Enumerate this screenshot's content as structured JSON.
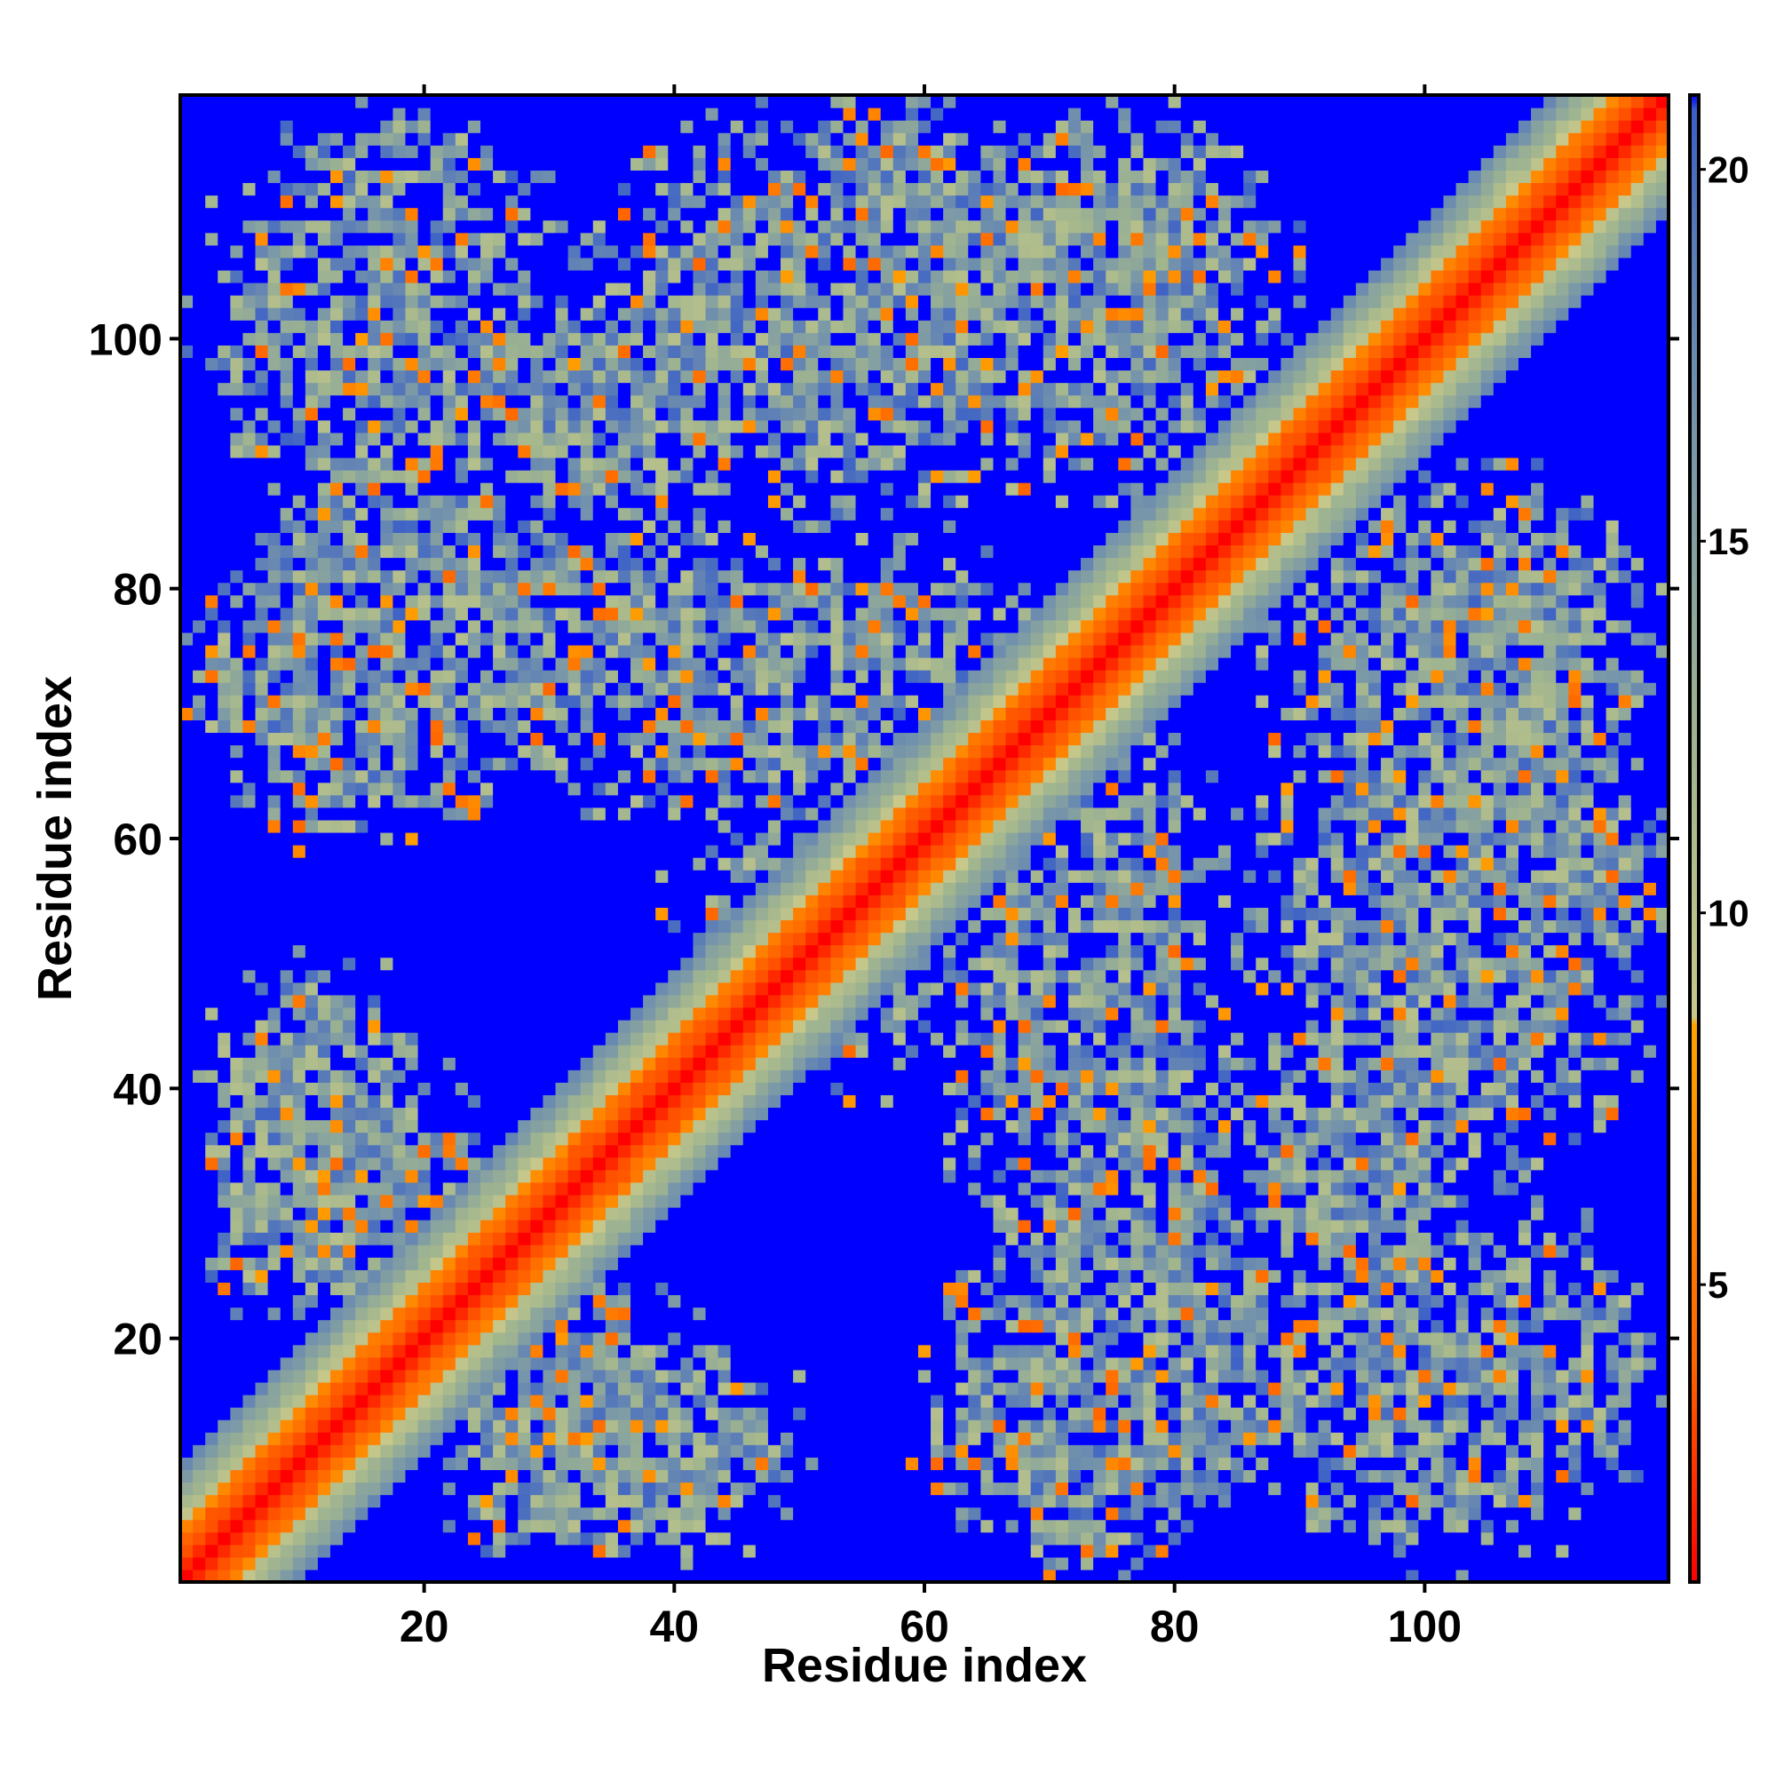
{
  "chart_data": {
    "type": "heatmap",
    "title": "",
    "xlabel": "Residue index",
    "ylabel": "Residue index",
    "n_residues": 119,
    "xlim": [
      0.5,
      119.5
    ],
    "ylim": [
      0.5,
      119.5
    ],
    "x_ticks": [
      20,
      40,
      60,
      80,
      100
    ],
    "y_ticks": [
      20,
      40,
      60,
      80,
      100
    ],
    "colorbar": {
      "range": [
        1,
        21
      ],
      "ticks": [
        5,
        10,
        15,
        20
      ],
      "stops": [
        {
          "value": 1,
          "color": "#ff0000"
        },
        {
          "value": 4,
          "color": "#ff6600"
        },
        {
          "value": 8.5,
          "color": "#ffa500"
        },
        {
          "value": 8.6,
          "color": "#c8c88a"
        },
        {
          "value": 12,
          "color": "#a2b68e"
        },
        {
          "value": 16,
          "color": "#7a98a8"
        },
        {
          "value": 19,
          "color": "#5a7cb8"
        },
        {
          "value": 20.8,
          "color": "#3a5fc8"
        },
        {
          "value": 21,
          "color": "#0000ff"
        }
      ]
    },
    "z_description": "Symmetric residue–residue distance map, dense diagonal band (values ~1–5) with off-diagonal contact blocks",
    "blocks": [
      {
        "x": [
          2,
          30
        ],
        "y": [
          84,
          118
        ],
        "strength": 0.75
      },
      {
        "x": [
          30,
          75
        ],
        "y": [
          85,
          118
        ],
        "strength": 0.8
      },
      {
        "x": [
          62,
          90
        ],
        "y": [
          95,
          118
        ],
        "strength": 0.85
      },
      {
        "x": [
          15,
          50
        ],
        "y": [
          65,
          90
        ],
        "strength": 0.7
      },
      {
        "x": [
          1,
          25
        ],
        "y": [
          60,
          85
        ],
        "strength": 0.8
      },
      {
        "x": [
          40,
          70
        ],
        "y": [
          60,
          85
        ],
        "strength": 0.6
      },
      {
        "x": [
          88,
          119
        ],
        "y": [
          55,
          90
        ],
        "strength": 0.75
      },
      {
        "x": [
          100,
          119
        ],
        "y": [
          40,
          75
        ],
        "strength": 0.8
      },
      {
        "x": [
          60,
          85
        ],
        "y": [
          25,
          70
        ],
        "strength": 0.7
      },
      {
        "x": [
          85,
          105
        ],
        "y": [
          20,
          45
        ],
        "strength": 0.8
      },
      {
        "x": [
          1,
          22
        ],
        "y": [
          25,
          50
        ],
        "strength": 0.85
      },
      {
        "x": [
          20,
          45
        ],
        "y": [
          1,
          25
        ],
        "strength": 0.8
      },
      {
        "x": [
          60,
          95
        ],
        "y": [
          5,
          30
        ],
        "strength": 0.75
      },
      {
        "x": [
          105,
          119
        ],
        "y": [
          5,
          30
        ],
        "strength": 0.6
      },
      {
        "x": [
          40,
          65
        ],
        "y": [
          40,
          70
        ],
        "strength": 0.55
      }
    ]
  }
}
